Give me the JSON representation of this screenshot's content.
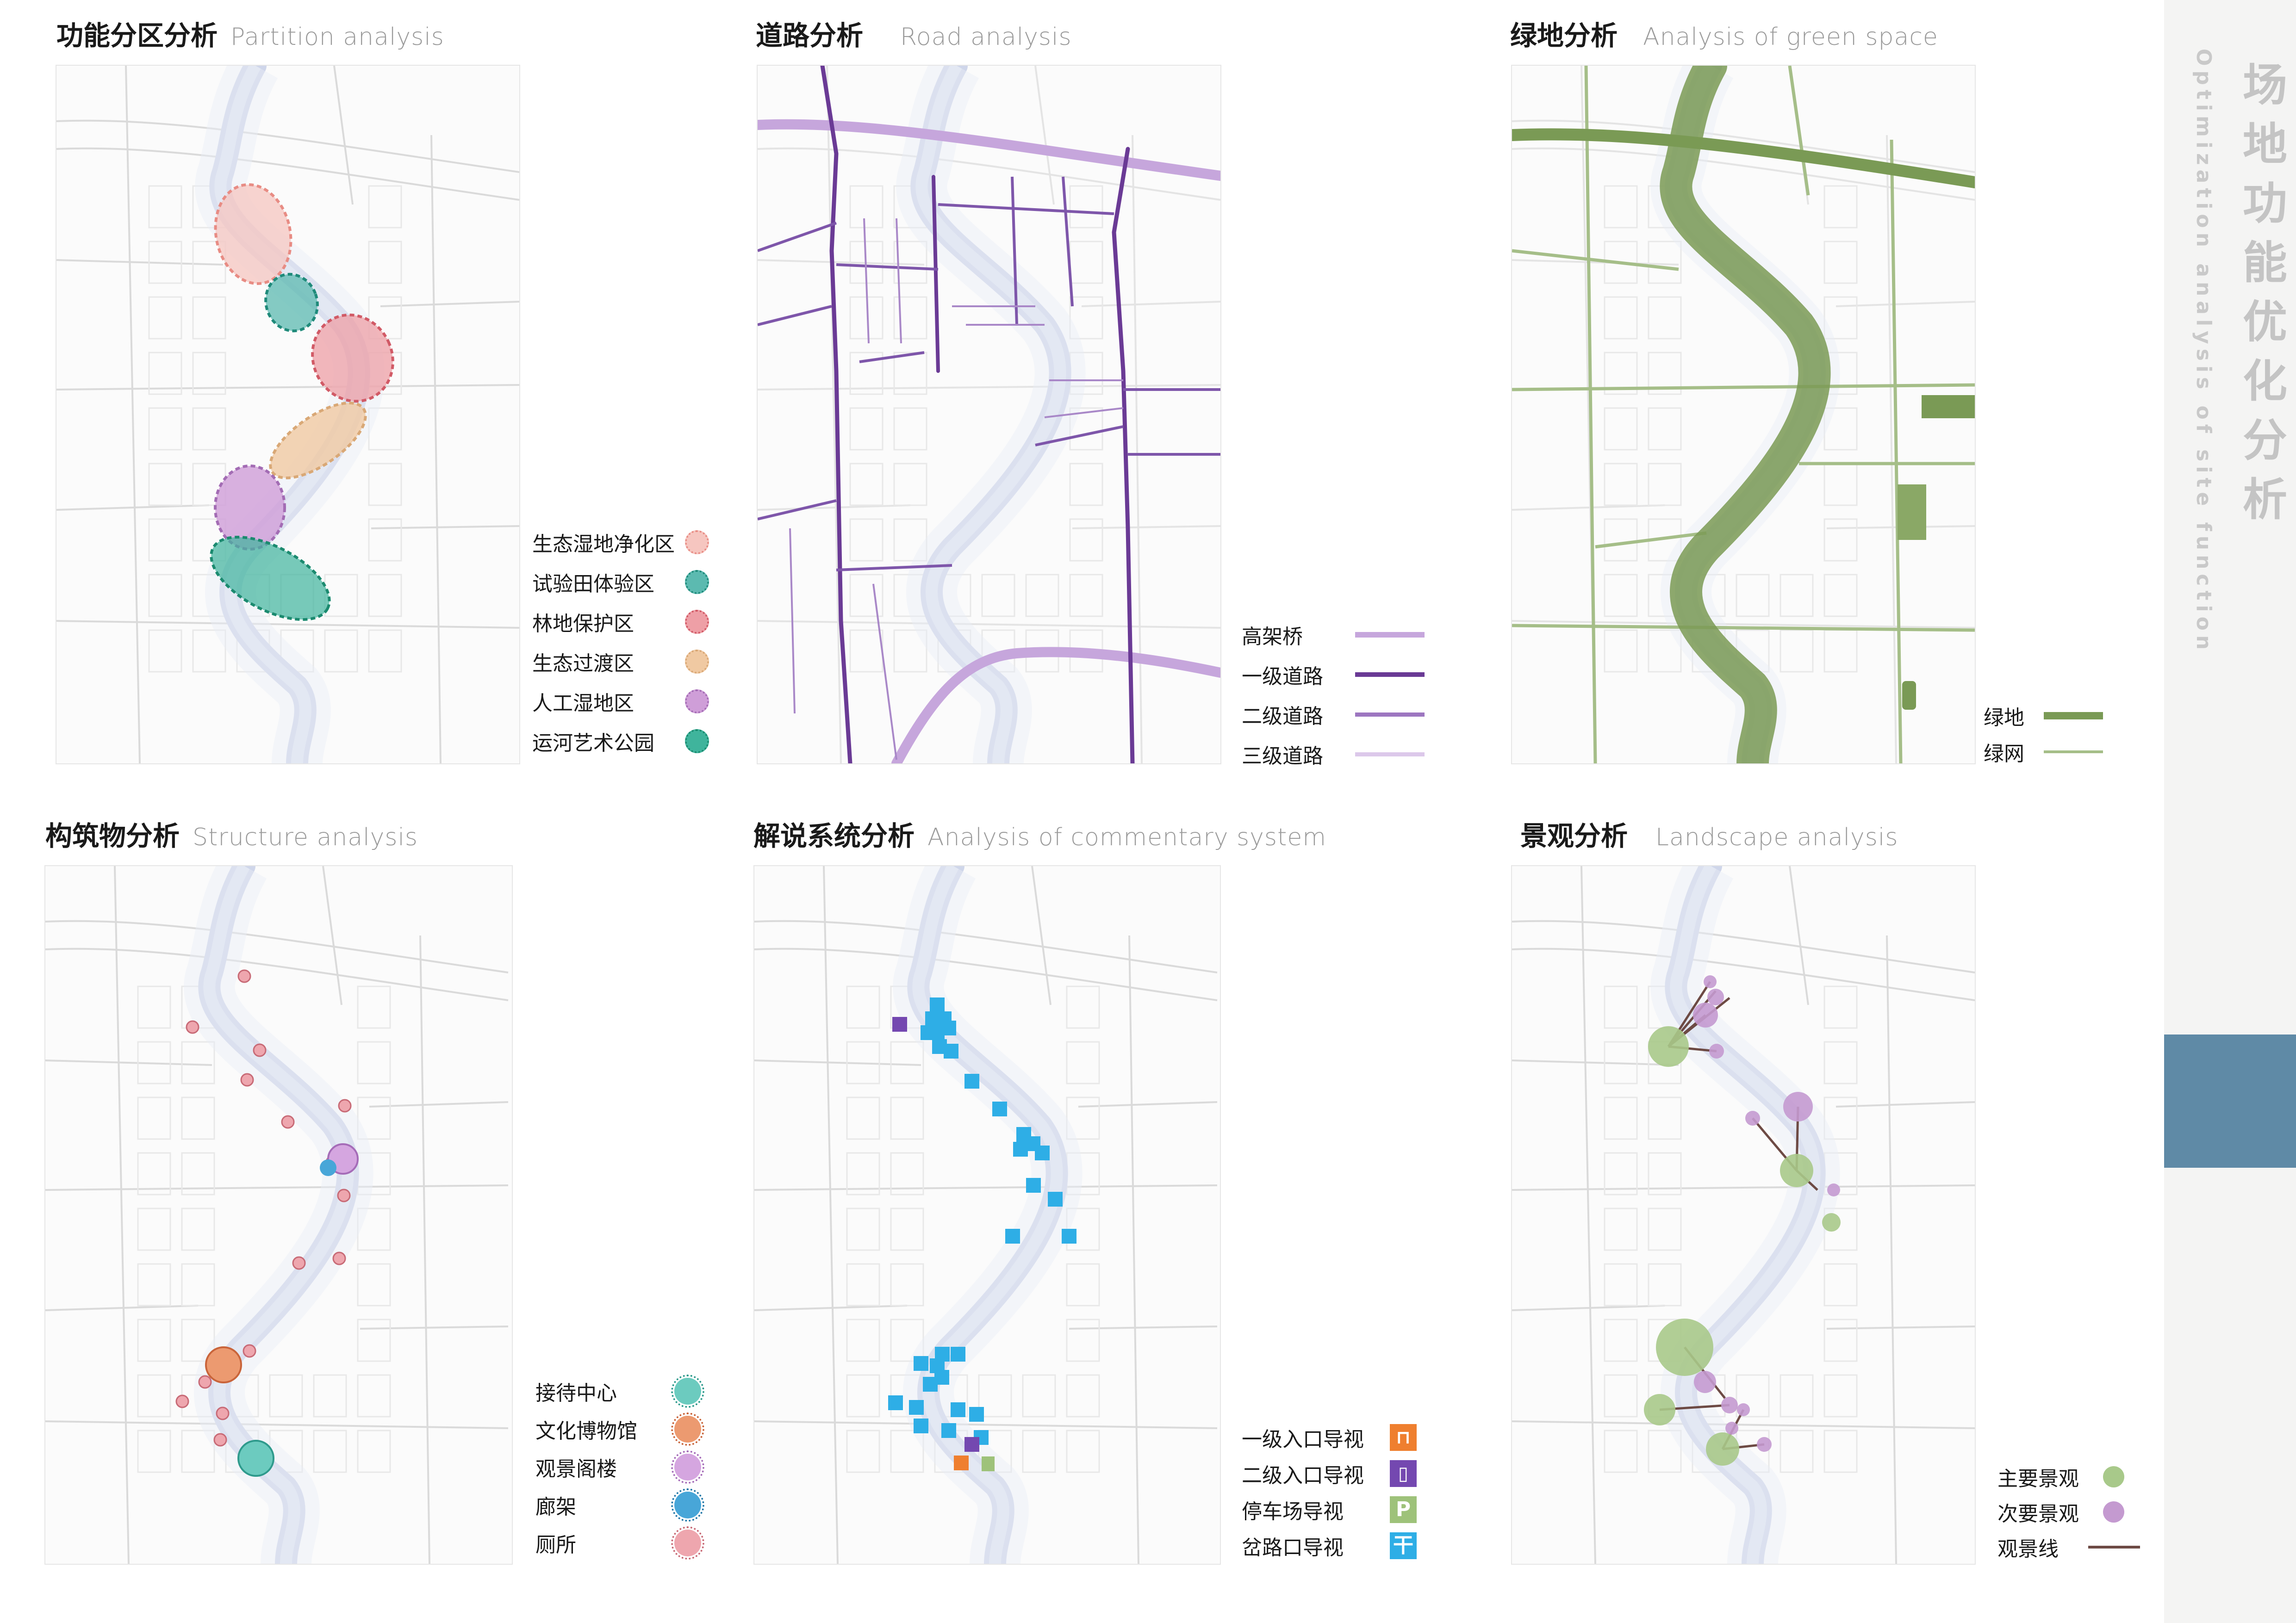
{
  "panels": {
    "partition": {
      "title_zh": "功能分区分析",
      "title_en": "Partition analysis",
      "legend": [
        {
          "label": "生态湿地净化区",
          "color": "#f6c6c0"
        },
        {
          "label": "试验田体验区",
          "color": "#5cbab0"
        },
        {
          "label": "林地保护区",
          "color": "#ee9fa6"
        },
        {
          "label": "生态过渡区",
          "color": "#f0c9a2"
        },
        {
          "label": "人工湿地区",
          "color": "#cf9ed8"
        },
        {
          "label": "运河艺术公园",
          "color": "#3fb49c"
        }
      ]
    },
    "road": {
      "title_zh": "道路分析",
      "title_en": "Road analysis",
      "legend": [
        {
          "label": "高架桥",
          "color": "#c6a6dc"
        },
        {
          "label": "一级道路",
          "color": "#6a3a95"
        },
        {
          "label": "二级道路",
          "color": "#9d76c0"
        },
        {
          "label": "三级道路",
          "color": "#dcc8ea"
        }
      ]
    },
    "green": {
      "title_zh": "绿地分析",
      "title_en": "Analysis of green space",
      "legend": [
        {
          "label": "绿地",
          "color": "#7a9a55"
        },
        {
          "label": "绿网",
          "color": "#a5be88"
        }
      ]
    },
    "structure": {
      "title_zh": "构筑物分析",
      "title_en": "Structure analysis",
      "legend": [
        {
          "label": "接待中心",
          "color": "#6ccbbf"
        },
        {
          "label": "文化博物馆",
          "color": "#ec9a70"
        },
        {
          "label": "观景阁楼",
          "color": "#d5a6e0"
        },
        {
          "label": "廊架",
          "color": "#48a6d8"
        },
        {
          "label": "厕所",
          "color": "#eea6ae"
        }
      ]
    },
    "commentary": {
      "title_zh": "解说系统分析",
      "title_en": "Analysis of commentary system",
      "legend": [
        {
          "label": "一级入口导视",
          "color": "#ef7f2f",
          "icon": "entrance-sign-icon"
        },
        {
          "label": "二级入口导视",
          "color": "#7448b0",
          "icon": "info-sign-icon"
        },
        {
          "label": "停车场导视",
          "color": "#9ec27a",
          "icon": "parking-sign-icon"
        },
        {
          "label": "岔路口导视",
          "color": "#2eaee6",
          "icon": "signpost-icon"
        }
      ]
    },
    "landscape": {
      "title_zh": "景观分析",
      "title_en": "Landscape analysis",
      "legend": [
        {
          "label": "主要景观",
          "color": "#a8c98a"
        },
        {
          "label": "次要景观",
          "color": "#c49ad0"
        },
        {
          "label": "观景线",
          "color": "#6d4a44"
        }
      ]
    }
  },
  "sidebar": {
    "title_zh": "场地功能优化分析",
    "title_en": "Optimization analysis of site function",
    "accent_color": "#5f8aa6"
  }
}
